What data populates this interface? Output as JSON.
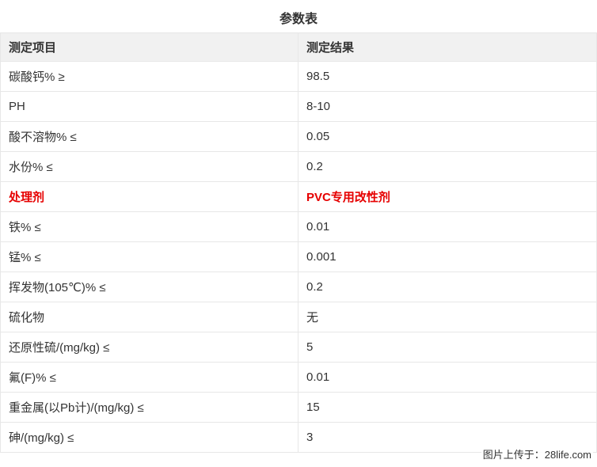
{
  "page": {
    "title": "参数表",
    "watermark": "图片上传于：28life.com"
  },
  "table": {
    "headers": [
      "测定项目",
      "测定结果"
    ],
    "rows": [
      {
        "item": "碳酸钙% ≥",
        "result": "98.5",
        "highlight": false
      },
      {
        "item": "PH",
        "result": "8-10",
        "highlight": false
      },
      {
        "item": "酸不溶物% ≤",
        "result": "0.05",
        "highlight": false
      },
      {
        "item": "水份% ≤",
        "result": "0.2",
        "highlight": false
      },
      {
        "item": "处理剂",
        "result": "PVC专用改性剂",
        "highlight": true
      },
      {
        "item": "铁% ≤",
        "result": "0.01",
        "highlight": false
      },
      {
        "item": "锰% ≤",
        "result": "0.001",
        "highlight": false
      },
      {
        "item": "挥发物(105℃)% ≤",
        "result": "0.2",
        "highlight": false
      },
      {
        "item": "硫化物",
        "result": "无",
        "highlight": false
      },
      {
        "item": "还原性硫/(mg/kg) ≤",
        "result": "5",
        "highlight": false
      },
      {
        "item": "氟(F)% ≤",
        "result": "0.01",
        "highlight": false
      },
      {
        "item": "重金属(以Pb计)/(mg/kg) ≤",
        "result": "15",
        "highlight": false
      },
      {
        "item": "砷/(mg/kg) ≤",
        "result": "3",
        "highlight": false
      }
    ]
  },
  "colors": {
    "header_bg": "#f1f1f1",
    "border": "#e7e7e7",
    "text": "#333333",
    "highlight_red": "#e60000"
  }
}
